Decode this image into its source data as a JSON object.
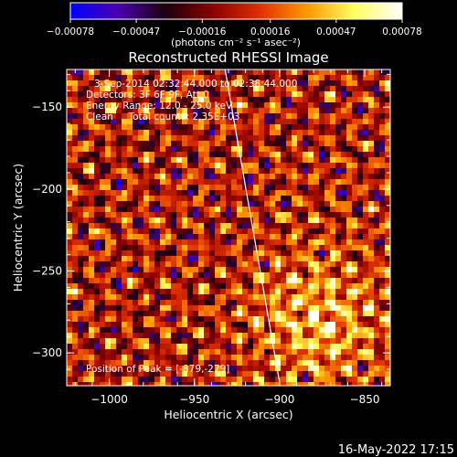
{
  "chart_data": {
    "type": "heatmap",
    "title": "Reconstructed RHESSI Image",
    "xlabel": "Heliocentric X (arcsec)",
    "ylabel": "Heliocentric Y (arcsec)",
    "xlim": [
      -1025,
      -835
    ],
    "ylim": [
      -320,
      -127
    ],
    "x_ticks": [
      -1000,
      -950,
      -900,
      -850
    ],
    "y_ticks": [
      -300,
      -250,
      -200,
      -150
    ],
    "x_tick_labels": [
      "−1000",
      "−950",
      "−900",
      "−850"
    ],
    "y_tick_labels": [
      "−300",
      "−250",
      "−200",
      "−150"
    ],
    "colorbar": {
      "range": [
        -0.00078,
        0.00078
      ],
      "ticks": [
        -0.00078,
        -0.00047,
        -0.00016,
        0.00016,
        0.00047,
        0.00078
      ],
      "tick_labels": [
        "−0.00078",
        "−0.00047",
        "−0.00016",
        "0.00016",
        "0.00047",
        "0.00078"
      ],
      "units": "(photons cm⁻² s⁻¹ asec⁻²)",
      "colormap": [
        "#0000ff",
        "#4b00b0",
        "#1a0010",
        "#8a0000",
        "#e03000",
        "#ff9a00",
        "#ffff60",
        "#ffffff"
      ]
    },
    "annotations": [
      "3-Sep-2014 02:32:44.000 to 02:38:44.000",
      "Detectors: 3F 6F 9F, Att 0",
      "Energy Range: 12.0 - 25.0 keV",
      "Clean     Total counts: 2.35E+03"
    ],
    "peak_label": "Position of Peak = [-879,-279]",
    "peak": {
      "x": -879,
      "y": -279
    },
    "limb_line": {
      "x1": -932,
      "y1": -127,
      "x2": -900,
      "y2": -318
    }
  },
  "footer_timestamp": "16-May-2022 17:15"
}
